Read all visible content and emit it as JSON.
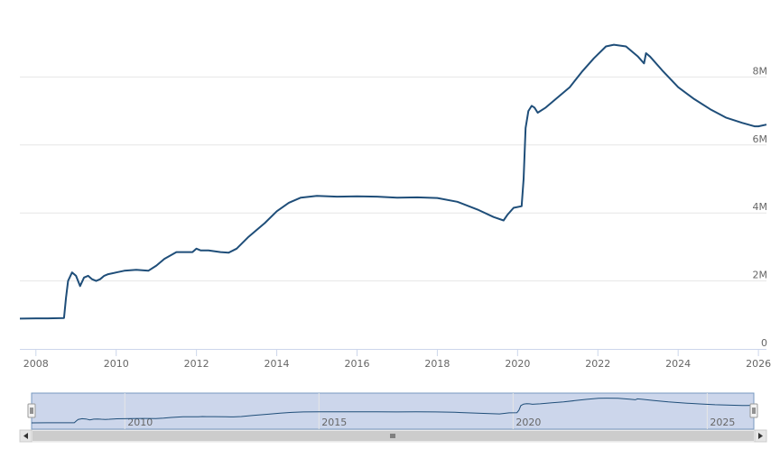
{
  "chart_data": {
    "type": "line",
    "title": "",
    "xlabel": "",
    "ylabel": "",
    "xlim": [
      2007.6,
      2026.2
    ],
    "ylim": [
      0,
      10000000
    ],
    "grid": true,
    "x_ticks": [
      {
        "value": 2008,
        "label": "2008"
      },
      {
        "value": 2010,
        "label": "2010"
      },
      {
        "value": 2012,
        "label": "2012"
      },
      {
        "value": 2014,
        "label": "2014"
      },
      {
        "value": 2016,
        "label": "2016"
      },
      {
        "value": 2018,
        "label": "2018"
      },
      {
        "value": 2020,
        "label": "2020"
      },
      {
        "value": 2022,
        "label": "2022"
      },
      {
        "value": 2024,
        "label": "2024"
      },
      {
        "value": 2026,
        "label": "2026"
      }
    ],
    "y_ticks": [
      {
        "value": 0,
        "label": "0"
      },
      {
        "value": 2000000,
        "label": "2M"
      },
      {
        "value": 4000000,
        "label": "4M"
      },
      {
        "value": 6000000,
        "label": "6M"
      },
      {
        "value": 8000000,
        "label": "8M"
      }
    ],
    "series": [
      {
        "color": "#1f4e79",
        "x": [
          2007.6,
          2008.0,
          2008.3,
          2008.7,
          2008.75,
          2008.8,
          2008.9,
          2009.0,
          2009.1,
          2009.2,
          2009.3,
          2009.4,
          2009.5,
          2009.6,
          2009.7,
          2009.8,
          2010.0,
          2010.2,
          2010.5,
          2010.8,
          2011.0,
          2011.2,
          2011.5,
          2011.9,
          2012.0,
          2012.1,
          2012.3,
          2012.6,
          2012.8,
          2013.0,
          2013.3,
          2013.7,
          2014.0,
          2014.3,
          2014.6,
          2015.0,
          2015.5,
          2016.0,
          2016.5,
          2017.0,
          2017.5,
          2018.0,
          2018.5,
          2019.0,
          2019.4,
          2019.65,
          2019.75,
          2019.9,
          2020.1,
          2020.15,
          2020.2,
          2020.27,
          2020.35,
          2020.42,
          2020.5,
          2020.7,
          2021.0,
          2021.3,
          2021.6,
          2021.9,
          2022.2,
          2022.4,
          2022.7,
          2023.0,
          2023.15,
          2023.2,
          2023.3,
          2023.6,
          2024.0,
          2024.4,
          2024.8,
          2025.2,
          2025.6,
          2025.9,
          2026.0,
          2026.2
        ],
        "y": [
          890000,
          900000,
          900000,
          910000,
          1500000,
          2000000,
          2250000,
          2150000,
          1850000,
          2100000,
          2150000,
          2050000,
          2000000,
          2050000,
          2150000,
          2200000,
          2250000,
          2300000,
          2330000,
          2300000,
          2450000,
          2650000,
          2850000,
          2850000,
          2950000,
          2900000,
          2900000,
          2850000,
          2830000,
          2950000,
          3300000,
          3700000,
          4050000,
          4300000,
          4450000,
          4500000,
          4480000,
          4490000,
          4480000,
          4450000,
          4460000,
          4440000,
          4330000,
          4100000,
          3880000,
          3780000,
          3950000,
          4150000,
          4200000,
          5000000,
          6500000,
          7000000,
          7150000,
          7100000,
          6950000,
          7100000,
          7400000,
          7700000,
          8150000,
          8550000,
          8900000,
          8950000,
          8900000,
          8600000,
          8400000,
          8700000,
          8600000,
          8200000,
          7700000,
          7350000,
          7050000,
          6800000,
          6650000,
          6550000,
          6550000,
          6600000
        ]
      }
    ]
  },
  "navigator": {
    "ticks": [
      {
        "value": 2010,
        "label": "2010"
      },
      {
        "value": 2015,
        "label": "2015"
      },
      {
        "value": 2020,
        "label": "2020"
      },
      {
        "value": 2025,
        "label": "2025"
      }
    ],
    "handle_icon": "grip-lines-icon",
    "scroll_left_icon": "arrow-left-icon",
    "scroll_right_icon": "arrow-right-icon",
    "colors": {
      "mask": "#ccd6eb",
      "outline": "#7798bf",
      "scrollbar_bg": "#f2f2f2",
      "scrollbar_thumb": "#cccccc"
    }
  }
}
